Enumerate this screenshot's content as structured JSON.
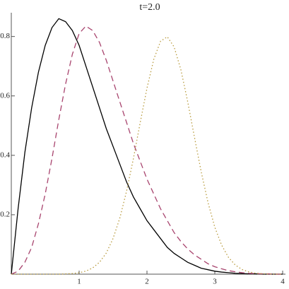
{
  "chart_data": {
    "type": "line",
    "title": "t=2.0",
    "x": [
      0,
      0.1,
      0.2,
      0.3,
      0.4,
      0.5,
      0.6,
      0.7,
      0.8,
      0.9,
      1.0,
      1.1,
      1.2,
      1.3,
      1.4,
      1.5,
      1.6,
      1.7,
      1.8,
      1.9,
      2.0,
      2.1,
      2.2,
      2.3,
      2.4,
      2.5,
      2.6,
      2.7,
      2.8,
      2.9,
      3.0,
      3.1,
      3.2,
      3.3,
      3.4,
      3.5,
      3.6,
      3.7,
      3.8,
      3.9,
      4.0
    ],
    "series": [
      {
        "color": "#000000",
        "dash": "none",
        "values": [
          0,
          0.22,
          0.41,
          0.56,
          0.68,
          0.77,
          0.83,
          0.86,
          0.85,
          0.82,
          0.77,
          0.7,
          0.63,
          0.56,
          0.49,
          0.43,
          0.37,
          0.31,
          0.26,
          0.22,
          0.18,
          0.15,
          0.12,
          0.09,
          0.07,
          0.055,
          0.04,
          0.03,
          0.02,
          0.015,
          0.01,
          0.007,
          0.005,
          0.003,
          0.002,
          0.001,
          0.001,
          0,
          0,
          0,
          0
        ]
      },
      {
        "color": "#a8446e",
        "dash": "8,5",
        "values": [
          0,
          0.01,
          0.04,
          0.09,
          0.17,
          0.27,
          0.39,
          0.52,
          0.64,
          0.74,
          0.81,
          0.835,
          0.82,
          0.78,
          0.72,
          0.65,
          0.58,
          0.51,
          0.44,
          0.38,
          0.32,
          0.27,
          0.22,
          0.18,
          0.14,
          0.11,
          0.085,
          0.065,
          0.05,
          0.035,
          0.025,
          0.018,
          0.012,
          0.008,
          0.005,
          0.003,
          0.002,
          0.001,
          0.001,
          0,
          0
        ]
      },
      {
        "color": "#b89a3c",
        "dash": "1.5,3",
        "values": [
          0,
          0,
          0,
          0,
          0,
          0,
          0,
          0,
          0.0009,
          0.0021,
          0.0048,
          0.0103,
          0.021,
          0.04,
          0.071,
          0.12,
          0.189,
          0.28,
          0.389,
          0.51,
          0.626,
          0.723,
          0.784,
          0.799,
          0.765,
          0.688,
          0.581,
          0.461,
          0.344,
          0.241,
          0.158,
          0.098,
          0.057,
          0.031,
          0.016,
          0.0077,
          0.0035,
          0.0015,
          0.0006,
          0.0002,
          0.0001
        ]
      }
    ],
    "xlim": [
      0,
      4
    ],
    "ylim": [
      0,
      0.88
    ],
    "xticks": [
      1,
      2,
      3,
      4
    ],
    "yticks": [
      0.2,
      0.4,
      0.6,
      0.8
    ]
  }
}
